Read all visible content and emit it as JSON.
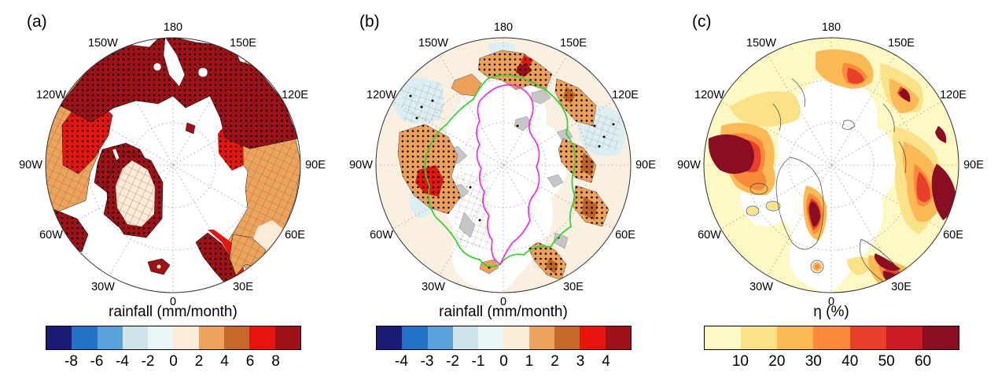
{
  "figure": {
    "lon_labels": [
      "180",
      "150E",
      "120E",
      "90E",
      "60E",
      "30E",
      "0",
      "30W",
      "60W",
      "90W",
      "120W",
      "150W"
    ],
    "panels": [
      {
        "id": "a",
        "label": "(a)",
        "title": "rainfall (mm/month)",
        "colorbar": {
          "colors": [
            "#1b1b75",
            "#2272c8",
            "#5aa2dc",
            "#cee3ea",
            "#eaf7f9",
            "#fbebd7",
            "#eda35c",
            "#c4692a",
            "#e8150f",
            "#9e1116"
          ],
          "ticks": [
            "-8",
            "-6",
            "-4",
            "-2",
            "0",
            "2",
            "4",
            "6",
            "8"
          ]
        }
      },
      {
        "id": "b",
        "label": "(b)",
        "title": "rainfall (mm/month)",
        "colorbar": {
          "colors": [
            "#1b1b75",
            "#2272c8",
            "#5aa2dc",
            "#cee3ea",
            "#eaf7f9",
            "#fbebd7",
            "#eda35c",
            "#c4692a",
            "#e8150f",
            "#9e1116"
          ],
          "ticks": [
            "-4",
            "-3",
            "-2",
            "-1",
            "0",
            "1",
            "2",
            "3",
            "4"
          ]
        }
      },
      {
        "id": "c",
        "label": "(c)",
        "title": "η (%)",
        "colorbar": {
          "colors": [
            "#fdf9c5",
            "#fbe289",
            "#fcba57",
            "#f98a3c",
            "#e8402a",
            "#cc1a27",
            "#8a0e22"
          ],
          "ticks": [
            "10",
            "20",
            "30",
            "40",
            "50",
            "60"
          ]
        }
      }
    ]
  },
  "chart_data": [
    {
      "type": "heatmap",
      "subtype": "north-polar-stereographic-map",
      "panel": "(a)",
      "title": "rainfall (mm/month)",
      "colorbar_tick_values": [
        -8,
        -6,
        -4,
        -2,
        0,
        2,
        4,
        6,
        8
      ],
      "colorbar_colors": [
        "#1b1b75",
        "#2272c8",
        "#5aa2dc",
        "#cee3ea",
        "#eaf7f9",
        "#fbebd7",
        "#eda35c",
        "#c4692a",
        "#e8150f",
        "#9e1116"
      ],
      "longitude_ring_labels": [
        "180",
        "150E",
        "120E",
        "90E",
        "60E",
        "30E",
        "0",
        "30W",
        "60W",
        "90W",
        "120W",
        "150W"
      ],
      "graticule": "dotted meridians every 30 deg, dotted latitude circles",
      "overlays": [
        "black stipple dots over strongest positive anomalies",
        "gray crosshatching over Canada, Siberia interior and central Greenland"
      ],
      "pattern": "land areas dominated by strong positive (dark red, >8) anomalies over Alaska, Chukotka and eastern Siberia; 2-6 (orange/red) over interior Canada and central Siberia; central Greenland near 0-2 (cream) ringed by >8 coast; dark red coastal Norway and Labrador; ocean shown white"
    },
    {
      "type": "heatmap",
      "subtype": "north-polar-stereographic-map",
      "panel": "(b)",
      "title": "rainfall (mm/month)",
      "colorbar_tick_values": [
        -4,
        -3,
        -2,
        -1,
        0,
        1,
        2,
        3,
        4
      ],
      "colorbar_colors": [
        "#1b1b75",
        "#2272c8",
        "#5aa2dc",
        "#cee3ea",
        "#eaf7f9",
        "#fbebd7",
        "#eda35c",
        "#c4692a",
        "#e8150f",
        "#9e1116"
      ],
      "longitude_ring_labels": [
        "180",
        "150E",
        "120E",
        "90E",
        "60E",
        "30E",
        "0",
        "30W",
        "60W",
        "90W",
        "120W",
        "150W"
      ],
      "contour_lines": [
        {
          "color": "#2ed32e",
          "name": "green contour around central Arctic"
        },
        {
          "color": "#ee2ee8",
          "name": "magenta contour around central Arctic"
        }
      ],
      "overlays": [
        "black stipple dots over orange coastal bands",
        "thin gray crosshatching patches",
        "gray coastline shading"
      ],
      "pattern": "mostly 0-1 (pale cream) with 1-2 (orange) stippled bands along Arctic coasts of Siberia, Alaska and Canada; red patch over NW Canada; light blue (-1) patches over Beaufort and Laptev sectors; white central Arctic Ocean"
    },
    {
      "type": "heatmap",
      "subtype": "north-polar-stereographic-map",
      "panel": "(c)",
      "title": "η (%)",
      "colorbar_tick_values": [
        10,
        20,
        30,
        40,
        50,
        60
      ],
      "colorbar_colors": [
        "#fdf9c5",
        "#fbe289",
        "#fcba57",
        "#f98a3c",
        "#e8402a",
        "#cc1a27",
        "#8a0e22"
      ],
      "longitude_ring_labels": [
        "180",
        "150E",
        "120E",
        "90E",
        "60E",
        "30E",
        "0",
        "30W",
        "60W",
        "90W",
        "120W",
        "150W"
      ],
      "pattern": "pale yellow (<10-20) background over land with >60 (dark maroon) maxima over Alaska/Yukon, central Greenland, Barents-Kara coast (60E-90E) and coastal Norway; 30-50 bands along East Siberian and Chukchi coasts; white central Arctic Ocean"
    }
  ]
}
